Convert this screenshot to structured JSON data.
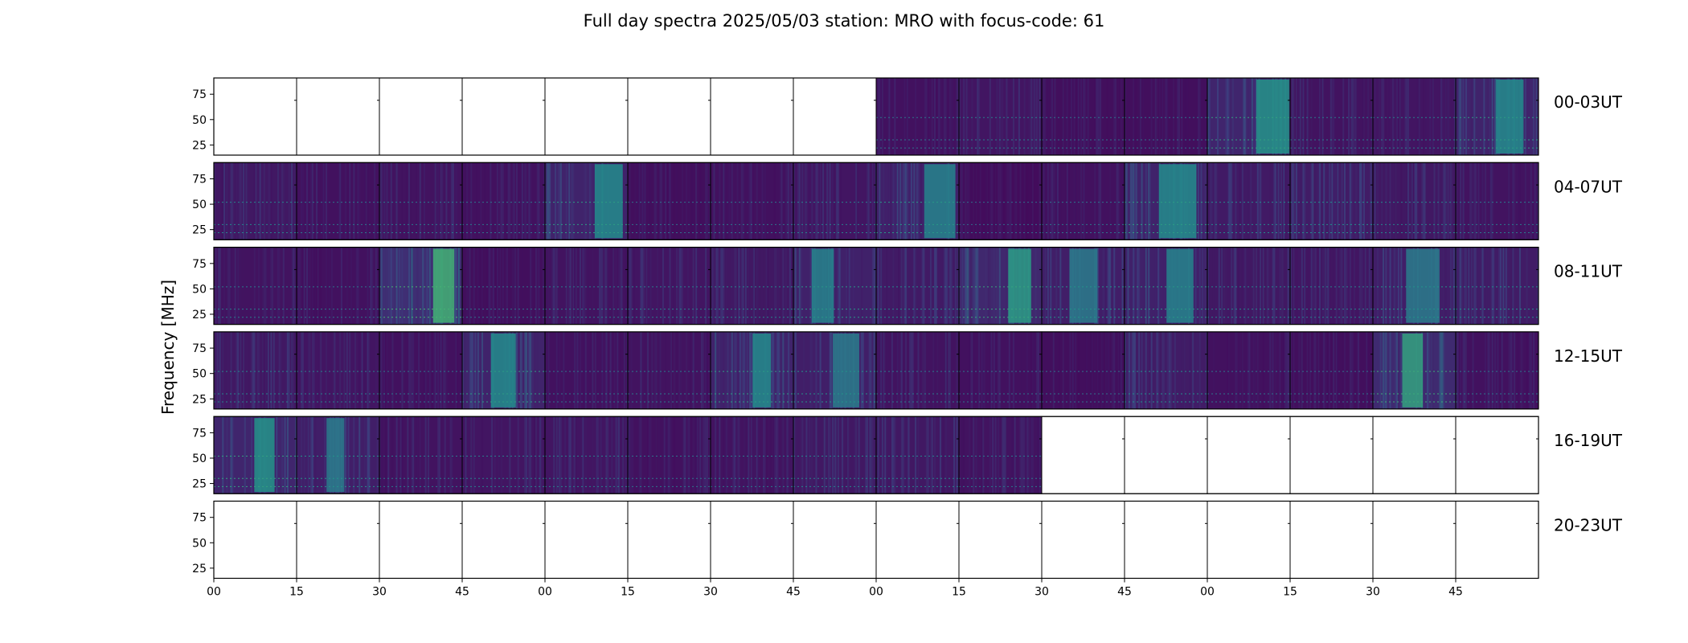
{
  "chart_data": {
    "type": "heatmap",
    "title": "Full day spectra 2025/05/03 station: MRO with focus-code: 61",
    "ylabel": "Frequency [MHz]",
    "xlabel": "",
    "ylim": [
      15,
      91
    ],
    "yticks": [
      "75",
      "50",
      "25"
    ],
    "ytick_values": [
      75,
      50,
      25
    ],
    "xticks": [
      "00",
      "15",
      "30",
      "45",
      "00",
      "15",
      "30",
      "45",
      "00",
      "15",
      "30",
      "45",
      "00",
      "15",
      "30",
      "45"
    ],
    "colormap": [
      "#440154",
      "#3b528b",
      "#21918c",
      "#5ec962",
      "#c8e020"
    ],
    "rows": [
      {
        "label": "00-03UT",
        "panels": [
          0,
          0,
          0,
          0,
          0,
          0,
          0,
          0,
          0.14,
          0.18,
          0.12,
          0.12,
          0.32,
          0.16,
          0.18,
          0.3
        ]
      },
      {
        "label": "04-07UT",
        "panels": [
          0.2,
          0.14,
          0.16,
          0.14,
          0.3,
          0.12,
          0.14,
          0.18,
          0.28,
          0.1,
          0.14,
          0.3,
          0.22,
          0.24,
          0.2,
          0.16
        ]
      },
      {
        "label": "08-11UT",
        "panels": [
          0.16,
          0.14,
          0.4,
          0.12,
          0.16,
          0.18,
          0.2,
          0.28,
          0.22,
          0.34,
          0.26,
          0.28,
          0.2,
          0.18,
          0.26,
          0.24
        ]
      },
      {
        "label": "12-15UT",
        "panels": [
          0.2,
          0.18,
          0.14,
          0.3,
          0.14,
          0.16,
          0.3,
          0.26,
          0.16,
          0.14,
          0.12,
          0.24,
          0.14,
          0.12,
          0.36,
          0.14
        ]
      },
      {
        "label": "16-19UT",
        "panels": [
          0.32,
          0.26,
          0.16,
          0.18,
          0.18,
          0.14,
          0.16,
          0.2,
          0.2,
          0.16,
          0,
          0,
          0,
          0,
          0,
          0
        ]
      },
      {
        "label": "20-23UT",
        "panels": [
          0,
          0,
          0,
          0,
          0,
          0,
          0,
          0,
          0,
          0,
          0,
          0,
          0,
          0,
          0,
          0
        ]
      }
    ]
  }
}
